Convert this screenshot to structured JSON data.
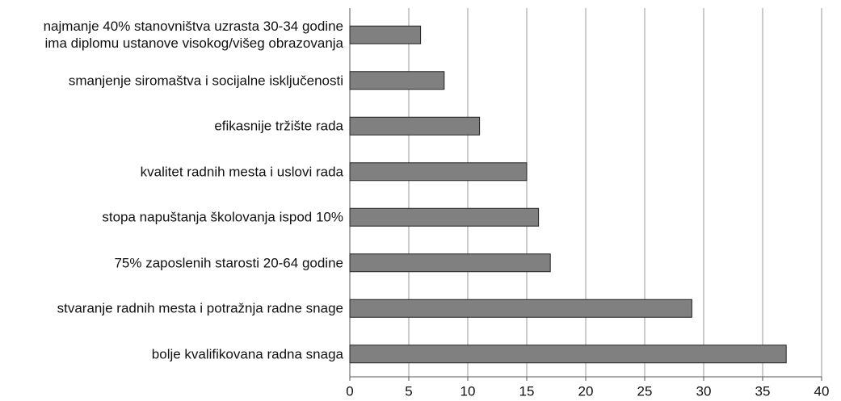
{
  "chart_data": {
    "type": "barh",
    "categories": [
      "najmanje 40% stanovništva uzrasta 30-34 godine\nima diplomu ustanove visokog/višeg obrazovanja",
      "smanjenje siromaštva i socijalne isključenosti",
      "efikasnije tržište rada",
      "kvalitet radnih mesta i uslovi rada",
      "stopa napuštanja školovanja ispod 10%",
      "75% zaposlenih starosti 20-64 godine",
      "stvaranje radnih mesta i potražnja radne snage",
      "bolje kvalifikovana radna snaga"
    ],
    "values": [
      6,
      8,
      11,
      15,
      16,
      17,
      29,
      37
    ],
    "color": "#808080",
    "xlim": [
      0,
      40
    ],
    "xticks": [
      0,
      5,
      10,
      15,
      20,
      25,
      30,
      35,
      40
    ],
    "grid": true
  }
}
